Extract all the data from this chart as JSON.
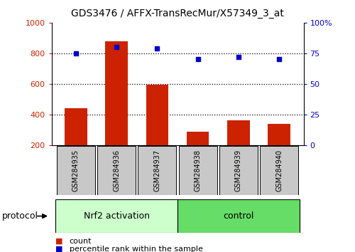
{
  "title": "GDS3476 / AFFX-TransRecMur/X57349_3_at",
  "samples": [
    "GSM284935",
    "GSM284936",
    "GSM284937",
    "GSM284938",
    "GSM284939",
    "GSM284940"
  ],
  "bar_values": [
    440,
    880,
    595,
    285,
    360,
    340
  ],
  "dot_values": [
    75,
    80,
    79,
    70,
    72,
    70
  ],
  "bar_color": "#cc2200",
  "dot_color": "#0000cc",
  "ylim_left": [
    200,
    1000
  ],
  "ylim_right": [
    0,
    100
  ],
  "yticks_left": [
    200,
    400,
    600,
    800,
    1000
  ],
  "yticks_right": [
    0,
    25,
    50,
    75,
    100
  ],
  "groups": [
    {
      "label": "Nrf2 activation",
      "start": 0,
      "end": 2,
      "color": "#ccffcc"
    },
    {
      "label": "control",
      "start": 3,
      "end": 5,
      "color": "#66dd66"
    }
  ],
  "group_row_label": "protocol",
  "legend_bar": "count",
  "legend_dot": "percentile rank within the sample",
  "bg_color": "#ffffff",
  "sample_box_color": "#c8c8c8",
  "bar_width": 0.55
}
